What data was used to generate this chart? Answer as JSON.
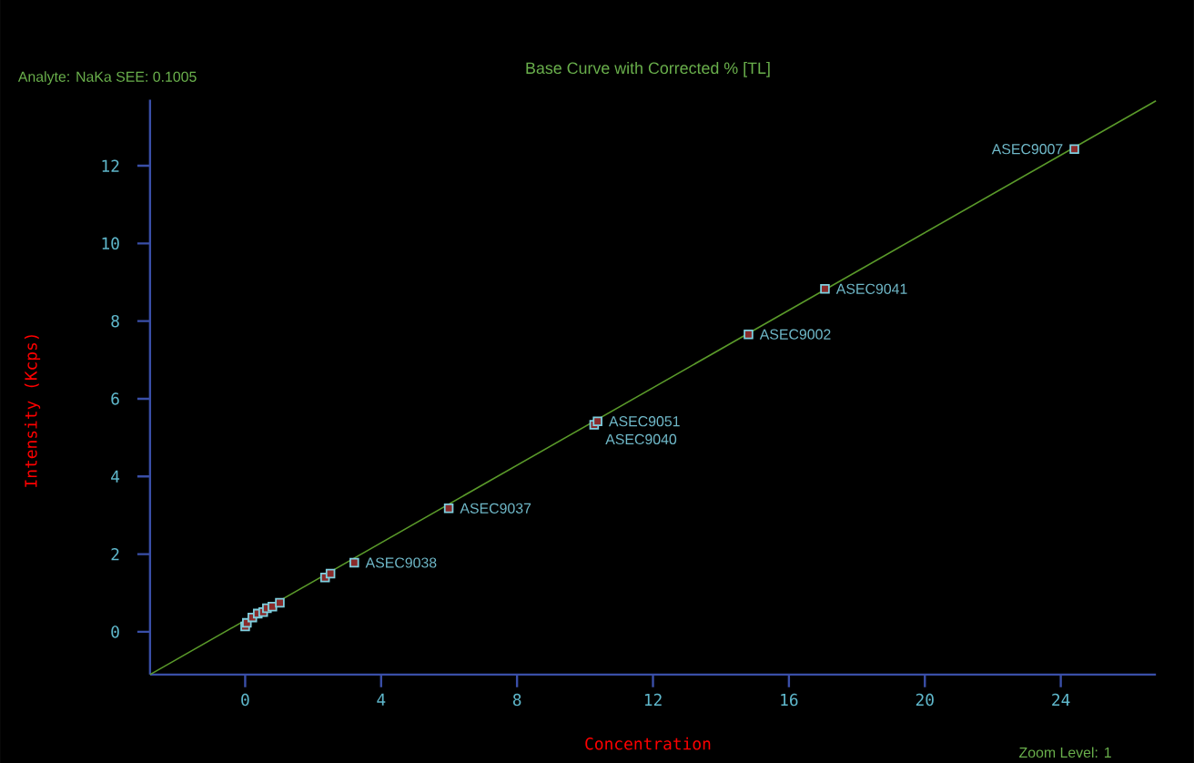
{
  "chart_data": {
    "type": "scatter",
    "title": "Base Curve with Corrected % [TL]",
    "xlabel": "Concentration",
    "ylabel": "Intensity (Kcps)",
    "xlim": [
      -2.8,
      26.8
    ],
    "ylim": [
      -1.1,
      13.7
    ],
    "xticks": [
      0,
      4,
      8,
      12,
      16,
      20,
      24
    ],
    "yticks": [
      0,
      2,
      4,
      6,
      8,
      10,
      12
    ],
    "series": [
      {
        "marker": "square",
        "color": "#7fd0e0",
        "x": [
          0.0,
          0.05,
          0.21,
          0.37,
          0.53,
          0.64,
          0.8,
          1.02,
          2.35,
          2.51,
          3.21,
          5.99,
          10.27,
          10.37,
          14.81,
          17.06,
          24.4
        ],
        "values": [
          0.14,
          0.23,
          0.37,
          0.47,
          0.51,
          0.61,
          0.65,
          0.75,
          1.4,
          1.5,
          1.78,
          3.18,
          5.33,
          5.42,
          7.66,
          8.83,
          12.43
        ]
      },
      {
        "type": "line",
        "color": "#5a9a2a",
        "x": [
          -2.8,
          26.8
        ],
        "values": [
          -1.1,
          13.67
        ]
      }
    ],
    "annotations": [
      "Analyte: NaKa  SEE: 0.1005",
      {
        "text": "ASEC9038",
        "x": 3.21,
        "y": 1.78
      },
      {
        "text": "ASEC9037",
        "x": 5.99,
        "y": 3.18
      },
      {
        "text": "ASEC9051",
        "x": 10.37,
        "y": 5.42
      },
      {
        "text": "ASEC9040",
        "x": 10.27,
        "y": 5.33
      },
      {
        "text": "ASEC9002",
        "x": 14.81,
        "y": 7.66
      },
      {
        "text": "ASEC9041",
        "x": 17.06,
        "y": 8.83
      },
      {
        "text": "ASEC9007",
        "x": 24.4,
        "y": 12.43
      },
      "Zoom Level: 1"
    ]
  }
}
